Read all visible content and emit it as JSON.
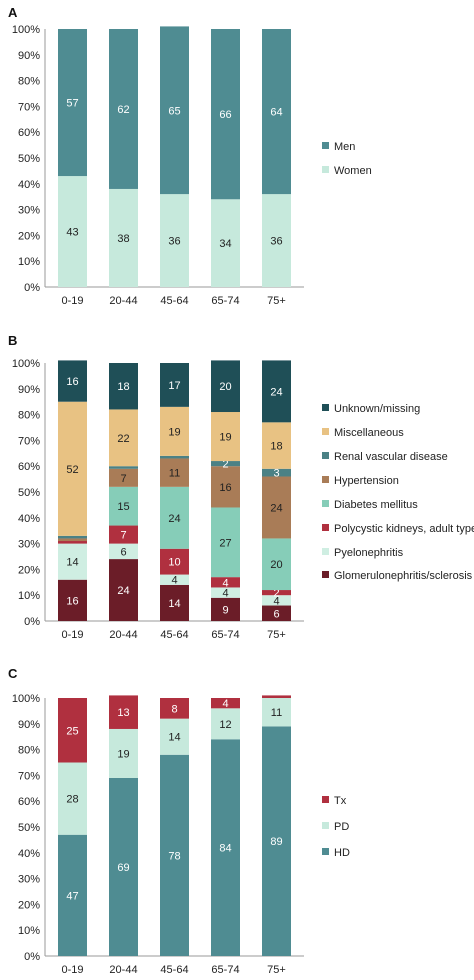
{
  "chart_data": [
    {
      "type": "bar",
      "stacked": true,
      "percent": true,
      "panel": "A",
      "categories": [
        "0-19",
        "20-44",
        "45-64",
        "65-74",
        "75+"
      ],
      "ylim": [
        0,
        100
      ],
      "yticks": [
        "0%",
        "10%",
        "20%",
        "30%",
        "40%",
        "50%",
        "60%",
        "70%",
        "80%",
        "90%",
        "100%"
      ],
      "series": [
        {
          "name": "Women",
          "color": "#c6e9dc",
          "label_color": "#222222",
          "values": [
            43,
            38,
            36,
            34,
            36
          ],
          "labels": [
            "43",
            "38",
            "36",
            "34",
            "36"
          ]
        },
        {
          "name": "Men",
          "color": "#4f8c92",
          "label_color": "#ffffff",
          "values": [
            57,
            62,
            65,
            66,
            64
          ],
          "labels": [
            "57",
            "62",
            "65",
            "66",
            "64"
          ]
        }
      ],
      "legend": {
        "position": "right",
        "order": [
          "Men",
          "Women"
        ]
      }
    },
    {
      "type": "bar",
      "stacked": true,
      "percent": true,
      "panel": "B",
      "categories": [
        "0-19",
        "20-44",
        "45-64",
        "65-74",
        "75+"
      ],
      "ylim": [
        0,
        100
      ],
      "yticks": [
        "0%",
        "10%",
        "20%",
        "30%",
        "40%",
        "50%",
        "60%",
        "70%",
        "80%",
        "90%",
        "100%"
      ],
      "series": [
        {
          "name": "Glomerulonephritis/sclerosis",
          "color": "#6b1d28",
          "label_color": "#ffffff",
          "values": [
            16,
            24,
            14,
            9,
            6
          ],
          "labels": [
            "16",
            "24",
            "14",
            "9",
            "6"
          ]
        },
        {
          "name": "Pyelonephritis",
          "color": "#cfeee2",
          "label_color": "#222222",
          "values": [
            14,
            6,
            4,
            4,
            4
          ],
          "labels": [
            "14",
            "6",
            "4",
            "4",
            "4"
          ]
        },
        {
          "name": "Polycystic kidneys, adult type",
          "color": "#b0303f",
          "label_color": "#ffffff",
          "values": [
            1,
            7,
            10,
            4,
            2
          ],
          "labels": [
            "",
            "7",
            "10",
            "4",
            "2"
          ]
        },
        {
          "name": "Diabetes mellitus",
          "color": "#86cdb8",
          "label_color": "#222222",
          "values": [
            0,
            15,
            24,
            27,
            20
          ],
          "labels": [
            "",
            "15",
            "24",
            "27",
            "20"
          ]
        },
        {
          "name": "Hypertension",
          "color": "#a97c57",
          "label_color": "#222222",
          "values": [
            1,
            7,
            11,
            16,
            24
          ],
          "labels": [
            "",
            "7",
            "11",
            "16",
            "24"
          ]
        },
        {
          "name": "Renal vascular disease",
          "color": "#4b8185",
          "label_color": "#ffffff",
          "values": [
            1,
            1,
            1,
            2,
            3
          ],
          "labels": [
            "",
            "",
            "",
            "2",
            "3"
          ]
        },
        {
          "name": "Miscellaneous",
          "color": "#e8c283",
          "label_color": "#222222",
          "values": [
            52,
            22,
            19,
            19,
            18
          ],
          "labels": [
            "52",
            "22",
            "19",
            "19",
            "18"
          ]
        },
        {
          "name": "Unknown/missing",
          "color": "#1f4f57",
          "label_color": "#ffffff",
          "values": [
            16,
            18,
            17,
            20,
            24
          ],
          "labels": [
            "16",
            "18",
            "17",
            "20",
            "24"
          ]
        }
      ],
      "legend": {
        "position": "right",
        "order": [
          "Unknown/missing",
          "Miscellaneous",
          "Renal vascular disease",
          "Hypertension",
          "Diabetes mellitus",
          "Polycystic kidneys, adult type",
          "Pyelonephritis",
          "Glomerulonephritis/sclerosis"
        ]
      }
    },
    {
      "type": "bar",
      "stacked": true,
      "percent": true,
      "panel": "C",
      "categories": [
        "0-19",
        "20-44",
        "45-64",
        "65-74",
        "75+"
      ],
      "ylim": [
        0,
        100
      ],
      "yticks": [
        "0%",
        "10%",
        "20%",
        "30%",
        "40%",
        "50%",
        "60%",
        "70%",
        "80%",
        "90%",
        "100%"
      ],
      "series": [
        {
          "name": "HD",
          "color": "#4f8c92",
          "label_color": "#ffffff",
          "values": [
            47,
            69,
            78,
            84,
            89
          ],
          "labels": [
            "47",
            "69",
            "78",
            "84",
            "89"
          ]
        },
        {
          "name": "PD",
          "color": "#c6e9dc",
          "label_color": "#222222",
          "values": [
            28,
            19,
            14,
            12,
            11
          ],
          "labels": [
            "28",
            "19",
            "14",
            "12",
            "11"
          ]
        },
        {
          "name": "Tx",
          "color": "#b0303f",
          "label_color": "#ffffff",
          "values": [
            25,
            13,
            8,
            4,
            1
          ],
          "labels": [
            "25",
            "13",
            "8",
            "4",
            ""
          ]
        }
      ],
      "legend": {
        "position": "right",
        "order": [
          "Tx",
          "PD",
          "HD"
        ]
      }
    }
  ]
}
